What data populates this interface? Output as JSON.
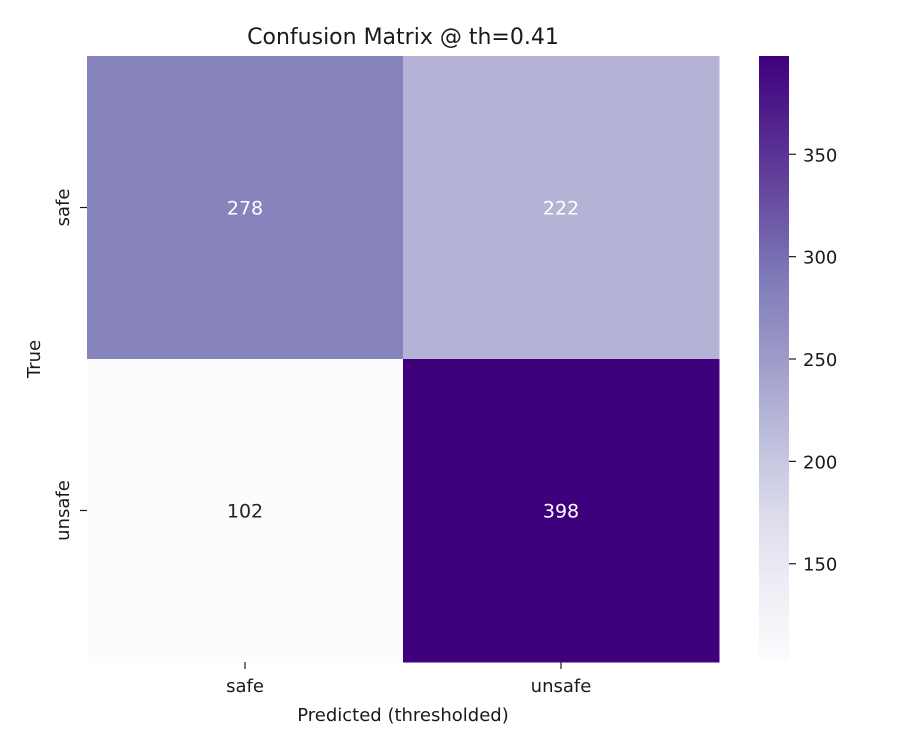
{
  "chart_data": {
    "type": "heatmap",
    "title": "Confusion Matrix @ th=0.41",
    "xlabel": "Predicted (thresholded)",
    "ylabel": "True",
    "x_categories": [
      "safe",
      "unsafe"
    ],
    "y_categories": [
      "safe",
      "unsafe"
    ],
    "values": [
      [
        278,
        222
      ],
      [
        102,
        398
      ]
    ],
    "colormap": "Purples",
    "vmin": 102,
    "vmax": 398,
    "colorbar_ticks": [
      150,
      200,
      250,
      300,
      350
    ],
    "annotation_colors": {
      "light_text": "#ffffff",
      "dark_text": "#262626"
    },
    "grid": false,
    "legend": "colorbar-right"
  }
}
